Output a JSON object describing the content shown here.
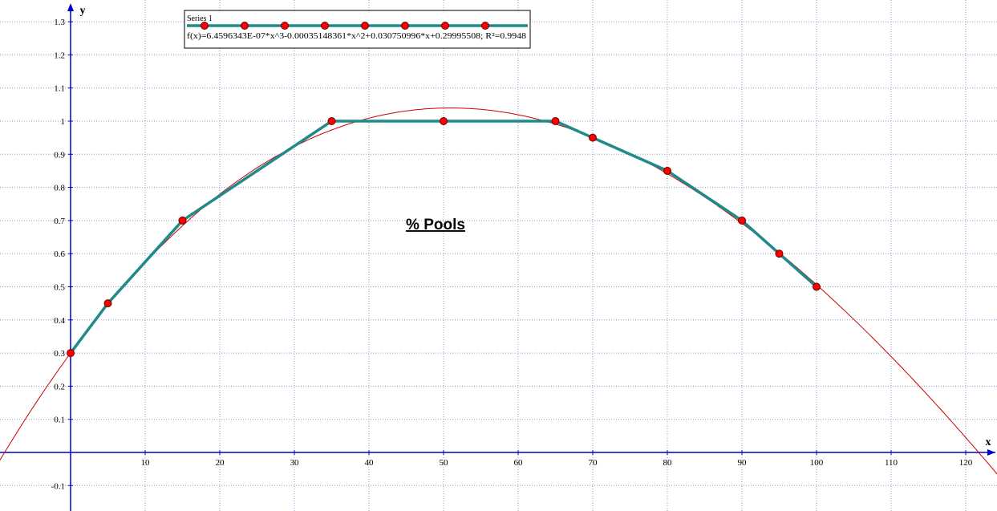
{
  "chart_data": {
    "type": "scatter",
    "title": "% Pools",
    "xlabel": "x",
    "ylabel": "y",
    "xlim": [
      -10,
      125
    ],
    "ylim": [
      -0.15,
      1.35
    ],
    "grid": true,
    "legend_position": "top-left",
    "x_ticks": [
      10,
      20,
      30,
      40,
      50,
      60,
      70,
      80,
      90,
      100,
      110,
      120
    ],
    "y_ticks": [
      -0.1,
      0.1,
      0.2,
      0.3,
      0.4,
      0.5,
      0.6,
      0.7,
      0.8,
      0.9,
      1,
      1.1,
      1.2,
      1.3
    ],
    "x_tick_labels": [
      "10",
      "20",
      "30",
      "40",
      "50",
      "60",
      "70",
      "80",
      "90",
      "100",
      "110",
      "120"
    ],
    "y_tick_labels": [
      "-0.1",
      "0.1",
      "0.2",
      "0.3",
      "0.4",
      "0.5",
      "0.6",
      "0.7",
      "0.8",
      "0.9",
      "1",
      "1.1",
      "1.2",
      "1.3"
    ],
    "series": [
      {
        "name": "Series 1",
        "x": [
          0,
          5,
          15,
          35,
          50,
          65,
          70,
          80,
          90,
          95,
          100
        ],
        "y": [
          0.3,
          0.45,
          0.7,
          1.0,
          1.0,
          1.0,
          0.95,
          0.85,
          0.7,
          0.6,
          0.5
        ],
        "line_color": "#1f8a8a",
        "marker_color": "#ff0000"
      }
    ],
    "trendline": {
      "label": "f(x)=6.4596343E-07*x^3-0.00035148361*x^2+0.030750996*x+0.29995508; R²=0.9948",
      "coefficients": [
        6.4596343e-07,
        -0.00035148361,
        0.030750996,
        0.29995508
      ],
      "color": "#cc0000"
    },
    "colors": {
      "axis": "#0000cc",
      "grid": "#9999cc"
    }
  }
}
